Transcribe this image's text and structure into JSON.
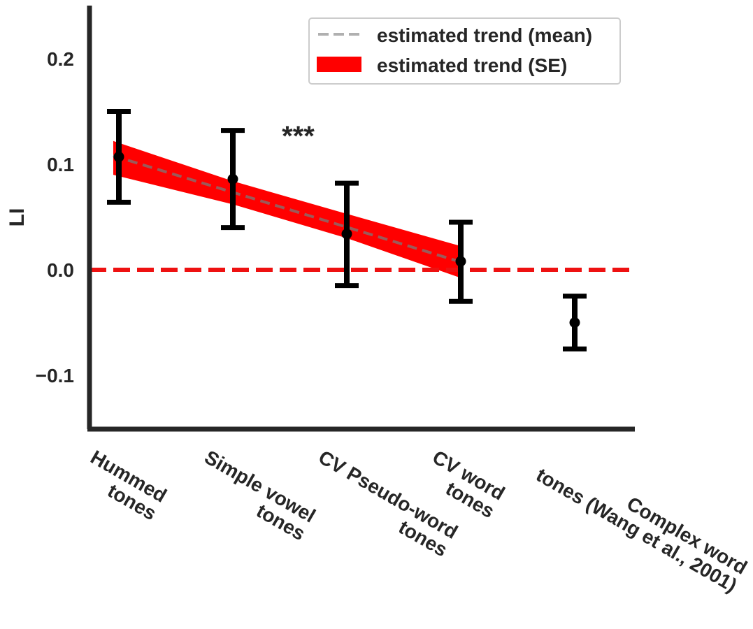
{
  "chart_data": {
    "type": "scatter",
    "title": "",
    "xlabel": "",
    "ylabel": "LI",
    "ylim": [
      -0.15,
      0.25
    ],
    "yticks": [
      -0.1,
      0.0,
      0.1,
      0.2
    ],
    "ytick_labels": [
      "−0.1",
      "0.0",
      "0.1",
      "0.2"
    ],
    "grid": false,
    "legend_position": "top-right",
    "categories": [
      [
        "Hummed",
        "tones"
      ],
      [
        "Simple vowel",
        "tones"
      ],
      [
        "CV Pseudo-word",
        "tones"
      ],
      [
        "CV word",
        "tones"
      ],
      [
        "Complex word",
        "tones (Wang et al., 2001)"
      ]
    ],
    "series": [
      {
        "name": "",
        "values": [
          0.107,
          0.086,
          0.034,
          0.008,
          -0.05
        ],
        "error_low": [
          0.064,
          0.04,
          -0.015,
          -0.03,
          -0.075
        ],
        "error_high": [
          0.15,
          0.132,
          0.082,
          0.045,
          -0.025
        ],
        "color": "#000000"
      }
    ],
    "trend": {
      "name": "estimated trend (mean)",
      "x": [
        0,
        3
      ],
      "y": [
        0.108,
        0.008
      ],
      "color": "#b0b0b0",
      "style": "dashed"
    },
    "trend_band": {
      "name": "estimated trend (SE)",
      "x": [
        0,
        1,
        2,
        3
      ],
      "lower": [
        0.09,
        0.062,
        0.03,
        -0.007
      ],
      "upper": [
        0.122,
        0.084,
        0.053,
        0.023
      ],
      "color": "#ff0000"
    },
    "reference_line": {
      "y": 0.0,
      "color": "#ee1111",
      "style": "dashed"
    },
    "annotation": {
      "text": "***",
      "x": 1.5,
      "y": 0.127
    },
    "legend": [
      {
        "label": "estimated trend (mean)",
        "kind": "dashed-line",
        "color": "#b0b0b0"
      },
      {
        "label": "estimated trend (SE)",
        "kind": "patch",
        "color": "#ff0000"
      }
    ]
  }
}
